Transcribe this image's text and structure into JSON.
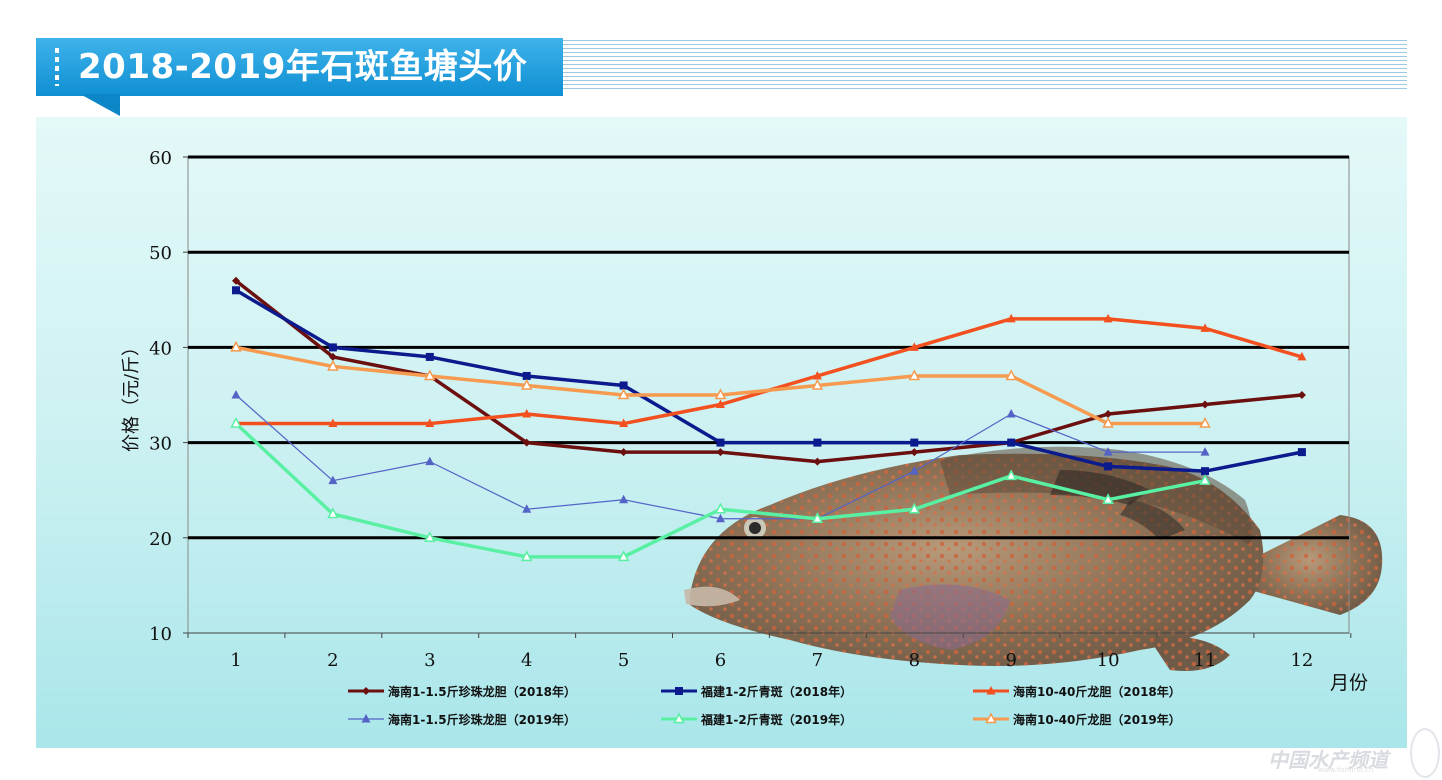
{
  "header": {
    "title": "2018-2019年石斑鱼塘头价"
  },
  "watermark": {
    "text": "中国水产频道",
    "sub": "www.fishfirst.cn"
  },
  "colors": {
    "title_bg": "#1a9ee0",
    "panel_bg": "#cdf1f2"
  },
  "chart_data": {
    "type": "line",
    "title": "",
    "ylabel": "价格（元/斤）",
    "xlabel": "月份",
    "ylim": [
      10,
      60
    ],
    "yticks": [
      10,
      20,
      30,
      40,
      50,
      60
    ],
    "x": [
      1,
      2,
      3,
      4,
      5,
      6,
      7,
      8,
      9,
      10,
      11,
      12
    ],
    "grid": "horizontal",
    "legend_position": "bottom",
    "series": [
      {
        "name": "海南1-1.5斤珍珠龙胆（2018年）",
        "color": "#6b0f0f",
        "marker": "diamond",
        "values": [
          47,
          39,
          37,
          30,
          29,
          29,
          28,
          29,
          30,
          33,
          34,
          35
        ]
      },
      {
        "name": "福建1-2斤青斑（2018年）",
        "color": "#0b1a8c",
        "marker": "square",
        "values": [
          46,
          40,
          39,
          37,
          36,
          30,
          30,
          30,
          30,
          27.5,
          27,
          29
        ]
      },
      {
        "name": "海南10-40斤龙胆（2018年）",
        "color": "#f2511f",
        "marker": "triangle",
        "values": [
          32,
          32,
          32,
          33,
          32,
          34,
          37,
          40,
          43,
          43,
          42,
          39
        ]
      },
      {
        "name": "海南1-1.5斤珍珠龙胆（2019年）",
        "color": "#5463c6",
        "marker": "triangle",
        "values": [
          35,
          26,
          28,
          23,
          24,
          22,
          22,
          27,
          33,
          29,
          29,
          null
        ]
      },
      {
        "name": "福建1-2斤青斑（2019年）",
        "color": "#5af0a4",
        "marker": "triangle-open",
        "values": [
          32,
          22.5,
          20,
          18,
          18,
          23,
          22,
          23,
          26.5,
          24,
          26,
          null
        ]
      },
      {
        "name": "海南10-40斤龙胆（2019年）",
        "color": "#f59a4e",
        "marker": "triangle-open",
        "values": [
          40,
          38,
          37,
          36,
          35,
          35,
          36,
          37,
          37,
          32,
          32,
          null
        ]
      }
    ]
  }
}
